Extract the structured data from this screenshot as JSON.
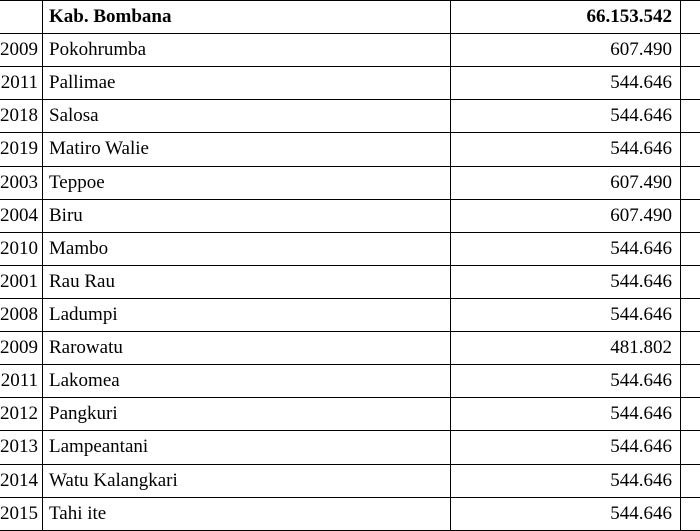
{
  "table": {
    "columns": [
      "code",
      "name",
      "value"
    ],
    "col_align": [
      "right",
      "left",
      "right"
    ],
    "font_family": "Bookman Old Style",
    "font_size_pt": 14,
    "border_color": "#000000",
    "background_color": "#ffffff",
    "header": {
      "code": "",
      "name": "Kab. Bombana",
      "value": "66.153.542",
      "bold": true
    },
    "rows": [
      {
        "code": "2009",
        "name": "Pokohrumba",
        "value": "607.490"
      },
      {
        "code": "2011",
        "name": "Pallimae",
        "value": "544.646"
      },
      {
        "code": "2018",
        "name": "Salosa",
        "value": "544.646"
      },
      {
        "code": "2019",
        "name": "Matiro Walie",
        "value": "544.646"
      },
      {
        "code": "2003",
        "name": "Teppoe",
        "value": "607.490"
      },
      {
        "code": "2004",
        "name": "Biru",
        "value": "607.490"
      },
      {
        "code": "2010",
        "name": "Mambo",
        "value": "544.646"
      },
      {
        "code": "2001",
        "name": "Rau Rau",
        "value": "544.646"
      },
      {
        "code": "2008",
        "name": "Ladumpi",
        "value": "544.646"
      },
      {
        "code": "2009",
        "name": "Rarowatu",
        "value": "481.802"
      },
      {
        "code": "2011",
        "name": "Lakomea",
        "value": "544.646"
      },
      {
        "code": "2012",
        "name": "Pangkuri",
        "value": "544.646"
      },
      {
        "code": "2013",
        "name": "Lampeantani",
        "value": "544.646"
      },
      {
        "code": "2014",
        "name": "Watu Kalangkari",
        "value": "544.646"
      },
      {
        "code": "2015",
        "name": "Tahi ite",
        "value": "544.646"
      }
    ]
  }
}
